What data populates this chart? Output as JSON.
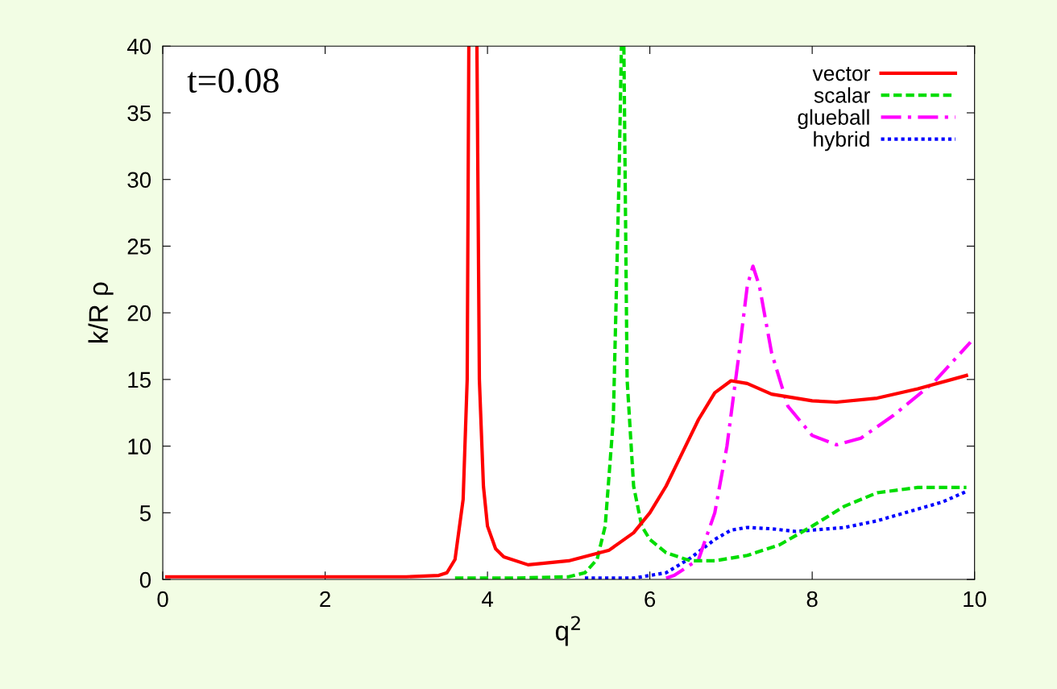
{
  "chart_data": {
    "type": "line",
    "xlabel": "q$^{2}$",
    "ylabel": "k/R ρ",
    "annotations": [
      "t=0.08"
    ],
    "xlim": [
      0,
      10
    ],
    "ylim": [
      0,
      40
    ],
    "xticks": [
      0,
      2,
      4,
      6,
      8,
      10
    ],
    "yticks": [
      0,
      5,
      10,
      15,
      20,
      25,
      30,
      35,
      40
    ],
    "grid": false,
    "legend": "top right",
    "marker": "none",
    "series": [
      {
        "name": "vector",
        "color": "#ff0000",
        "line_style": "solid",
        "x": [
          0.05,
          1,
          2,
          3,
          3.4,
          3.5,
          3.6,
          3.7,
          3.75,
          3.77,
          3.82,
          3.87,
          3.9,
          3.95,
          4.0,
          4.1,
          4.2,
          4.5,
          5.0,
          5.5,
          5.8,
          6.0,
          6.2,
          6.4,
          6.6,
          6.8,
          7.0,
          7.2,
          7.5,
          8.0,
          8.3,
          8.8,
          9.3,
          9.9
        ],
        "values": [
          0.2,
          0.2,
          0.2,
          0.2,
          0.3,
          0.5,
          1.5,
          6,
          15,
          40,
          null,
          40,
          15,
          7,
          4,
          2.3,
          1.7,
          1.1,
          1.4,
          2.2,
          3.5,
          5,
          7,
          9.5,
          12,
          14,
          14.9,
          14.7,
          13.9,
          13.4,
          13.3,
          13.6,
          14.3,
          15.3
        ]
      },
      {
        "name": "scalar",
        "color": "#00dd00",
        "line_style": "dashed",
        "x": [
          3.6,
          4.3,
          5.0,
          5.2,
          5.35,
          5.45,
          5.55,
          5.62,
          5.65,
          5.665,
          5.68,
          5.72,
          5.8,
          5.9,
          6.0,
          6.2,
          6.5,
          6.8,
          7.2,
          7.6,
          8.0,
          8.4,
          8.8,
          9.3,
          9.9
        ],
        "values": [
          0.1,
          0.1,
          0.2,
          0.5,
          1.5,
          4,
          12,
          30,
          40,
          null,
          40,
          15,
          7,
          4,
          3,
          2,
          1.4,
          1.4,
          1.8,
          2.6,
          4,
          5.5,
          6.5,
          6.9,
          6.9
        ]
      },
      {
        "name": "glueball",
        "color": "#ff00ff",
        "line_style": "dashdot",
        "x": [
          6.2,
          6.3,
          6.6,
          6.8,
          6.95,
          7.1,
          7.2,
          7.27,
          7.35,
          7.5,
          7.7,
          8.0,
          8.3,
          8.6,
          9.0,
          9.5,
          9.95
        ],
        "values": [
          0.1,
          0.3,
          1.5,
          5,
          10,
          17,
          22,
          23.5,
          22,
          17,
          13,
          10.8,
          10.1,
          10.6,
          12.3,
          14.8,
          17.8
        ]
      },
      {
        "name": "hybrid",
        "color": "#0000ff",
        "line_style": "dotted",
        "x": [
          5.2,
          5.8,
          6.2,
          6.5,
          6.8,
          7.0,
          7.2,
          7.5,
          7.8,
          8.0,
          8.4,
          8.8,
          9.2,
          9.6,
          9.9
        ],
        "values": [
          0.1,
          0.1,
          0.5,
          1.6,
          3,
          3.7,
          3.9,
          3.8,
          3.6,
          3.7,
          3.9,
          4.4,
          5.1,
          5.8,
          6.6
        ]
      }
    ]
  }
}
